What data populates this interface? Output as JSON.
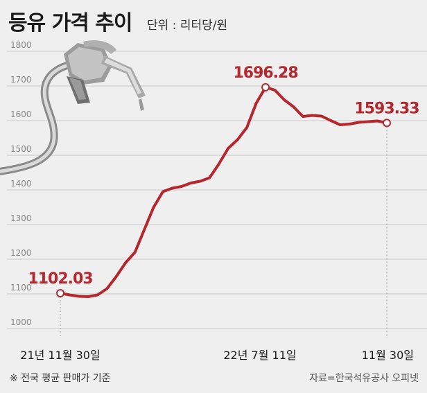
{
  "header": {
    "title": "등유 가격 추이",
    "unit": "단위 : 리터당/원"
  },
  "footer": {
    "note": "※ 전국 평균 판매가 기준",
    "source": "자료=한국석유공사 오피넷"
  },
  "colors": {
    "line": "#b5272d",
    "grid": "#c8c8c8",
    "background": "#efefef",
    "tick": "#888888"
  },
  "chart_data": {
    "type": "line",
    "title": "등유 가격 추이",
    "ylabel": "단위 : 리터당/원",
    "ylim": [
      1000,
      1800
    ],
    "yticks": [
      "1800",
      "1700",
      "1600",
      "1500",
      "1400",
      "1300",
      "1200",
      "1100",
      "1000"
    ],
    "xtick_labels": [
      "21년 11월 30일",
      "22년 7월 11일",
      "11월 30일"
    ],
    "grid": true,
    "series": [
      {
        "values": [
          1102.03,
          1097,
          1093,
          1092,
          1097,
          1115,
          1150,
          1190,
          1220,
          1285,
          1350,
          1395,
          1405,
          1410,
          1420,
          1425,
          1435,
          1475,
          1520,
          1545,
          1580,
          1650,
          1696.28,
          1688,
          1660,
          1640,
          1612,
          1615,
          1613,
          1600,
          1588,
          1590,
          1595,
          1597,
          1599,
          1593.33
        ]
      }
    ],
    "annotations": [
      {
        "label": "1102.03",
        "value": 1102.03
      },
      {
        "label": "1696.28",
        "value": 1696.28
      },
      {
        "label": "1593.33",
        "value": 1593.33
      }
    ]
  }
}
